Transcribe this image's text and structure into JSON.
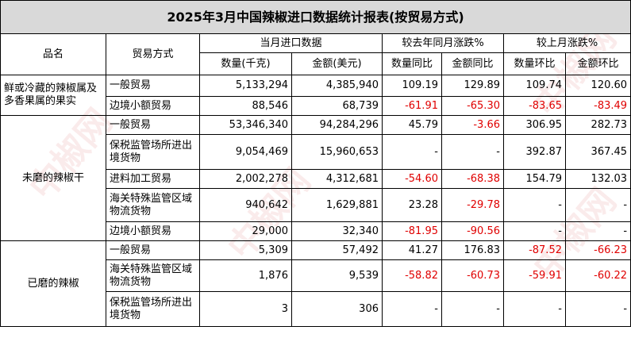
{
  "title": "2025年3月中国辣椒进口数据统计报表(按贸易方式)",
  "headers": {
    "product": "品名",
    "trade_mode": "贸易方式",
    "month_import": "当月进口数据",
    "yoy": "较去年同月涨跌%",
    "mom": "较上月涨跌%",
    "qty": "数量(千克)",
    "amount": "金额(美元)",
    "qty_yoy": "数量同比",
    "amt_yoy": "金额同比",
    "qty_mom": "数量环比",
    "amt_mom": "金额环比"
  },
  "groups": [
    {
      "product": "鲜或冷藏的辣椒属及多香果属的果实",
      "rows": [
        {
          "mode": "一般贸易",
          "qty": "5,133,294",
          "amount": "4,385,940",
          "qty_yoy": "109.19",
          "amt_yoy": "129.89",
          "qty_mom": "109.74",
          "amt_mom": "120.60"
        },
        {
          "mode": "边境小额贸易",
          "qty": "88,546",
          "amount": "68,739",
          "qty_yoy": "-61.91",
          "amt_yoy": "-65.30",
          "qty_mom": "-83.65",
          "amt_mom": "-83.49"
        }
      ]
    },
    {
      "product": "未磨的辣椒干",
      "rows": [
        {
          "mode": "一般贸易",
          "qty": "53,346,340",
          "amount": "94,284,296",
          "qty_yoy": "45.79",
          "amt_yoy": "-3.66",
          "qty_mom": "306.95",
          "amt_mom": "282.73"
        },
        {
          "mode": "保税监管场所进出境货物",
          "qty": "9,054,469",
          "amount": "15,960,653",
          "qty_yoy": "-",
          "amt_yoy": "-",
          "qty_mom": "392.87",
          "amt_mom": "367.45"
        },
        {
          "mode": "进料加工贸易",
          "qty": "2,002,278",
          "amount": "4,312,681",
          "qty_yoy": "-54.60",
          "amt_yoy": "-68.38",
          "qty_mom": "154.79",
          "amt_mom": "132.03"
        },
        {
          "mode": "海关特殊监管区域物流货物",
          "qty": "940,642",
          "amount": "1,629,881",
          "qty_yoy": "23.28",
          "amt_yoy": "-29.78",
          "qty_mom": "-",
          "amt_mom": "-"
        },
        {
          "mode": "边境小额贸易",
          "qty": "29,000",
          "amount": "32,340",
          "qty_yoy": "-81.95",
          "amt_yoy": "-90.56",
          "qty_mom": "-",
          "amt_mom": "-"
        }
      ]
    },
    {
      "product": "已磨的辣椒",
      "rows": [
        {
          "mode": "一般贸易",
          "qty": "5,309",
          "amount": "57,492",
          "qty_yoy": "41.27",
          "amt_yoy": "176.83",
          "qty_mom": "-87.52",
          "amt_mom": "-66.23"
        },
        {
          "mode": "海关特殊监管区域物流货物",
          "qty": "1,876",
          "amount": "9,539",
          "qty_yoy": "-58.82",
          "amt_yoy": "-60.73",
          "qty_mom": "-59.91",
          "amt_mom": "-60.22"
        },
        {
          "mode": "保税监管场所进出境货物",
          "qty": "3",
          "amount": "306",
          "qty_yoy": "-",
          "amt_yoy": "-",
          "qty_mom": "-",
          "amt_mom": "-"
        }
      ]
    }
  ],
  "watermark": "中椒网",
  "colors": {
    "header_bg": "#d9d9d9",
    "negative": "#e00000",
    "watermark": "#f3c8c8"
  }
}
